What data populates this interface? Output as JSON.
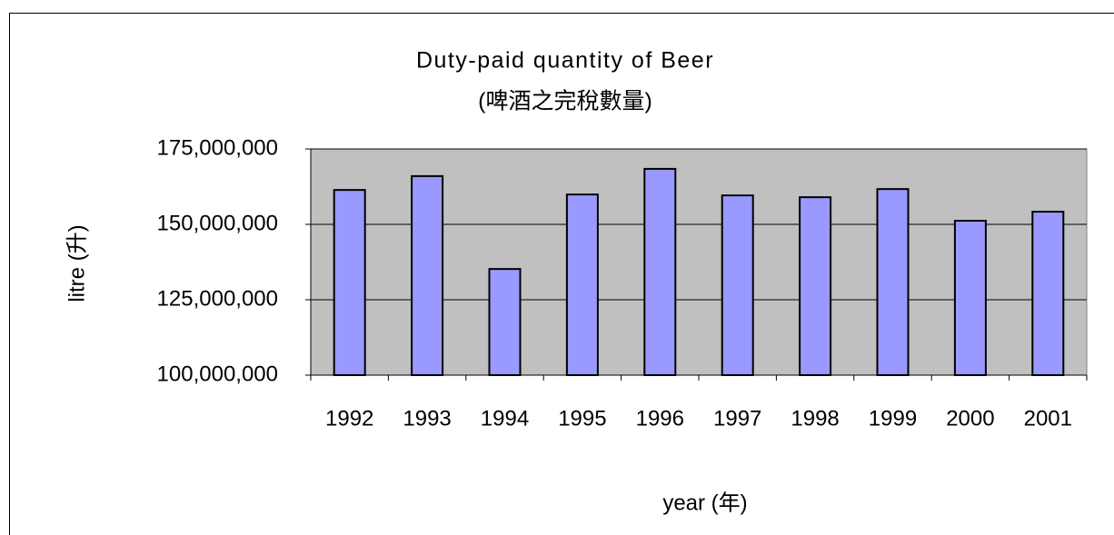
{
  "chart_data": {
    "type": "bar",
    "title": "Duty-paid quantity of Beer",
    "subtitle": "(啤酒之完稅數量)",
    "x_label": "year (年)",
    "y_label": "litre (升)",
    "categories": [
      "1992",
      "1993",
      "1994",
      "1995",
      "1996",
      "1997",
      "1998",
      "1999",
      "2000",
      "2001"
    ],
    "values": [
      161400000,
      166000000,
      135200000,
      159900000,
      168400000,
      159600000,
      159000000,
      161700000,
      151200000,
      154200000
    ],
    "color": "#9999ff",
    "ylim": [
      100000000,
      175000000
    ],
    "yticks": [
      {
        "value": 100000000,
        "label": "100,000,000"
      },
      {
        "value": 125000000,
        "label": "125,000,000"
      },
      {
        "value": 150000000,
        "label": "150,000,000"
      },
      {
        "value": 175000000,
        "label": "175,000,000"
      }
    ],
    "grid": true
  }
}
